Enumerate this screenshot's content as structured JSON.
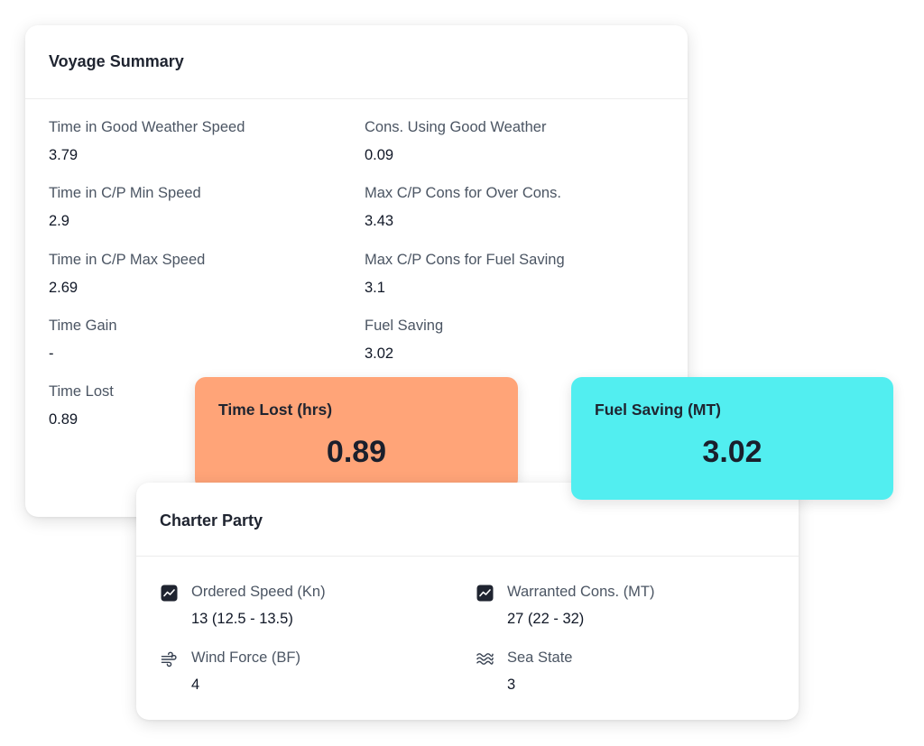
{
  "voyage_summary": {
    "title": "Voyage Summary",
    "fields": [
      {
        "label": "Time in Good Weather Speed",
        "value": "3.79"
      },
      {
        "label": "Cons. Using Good Weather",
        "value": "0.09"
      },
      {
        "label": "Time in C/P Min Speed",
        "value": "2.9"
      },
      {
        "label": "Max C/P Cons for Over Cons.",
        "value": "3.43"
      },
      {
        "label": "Time in C/P Max Speed",
        "value": "2.69"
      },
      {
        "label": "Max C/P Cons for Fuel Saving",
        "value": "3.1"
      },
      {
        "label": "Time Gain",
        "value": "-"
      },
      {
        "label": "Fuel Saving",
        "value": "3.02"
      },
      {
        "label": "Time Lost",
        "value": "0.89"
      }
    ]
  },
  "stats": {
    "time_lost": {
      "label": "Time Lost (hrs)",
      "value": "0.89",
      "color": "#ffa478"
    },
    "fuel_saving": {
      "label": "Fuel Saving (MT)",
      "value": "3.02",
      "color": "#52eef0"
    }
  },
  "charter_party": {
    "title": "Charter Party",
    "fields": [
      {
        "icon": "trend-chart-icon",
        "label": "Ordered Speed (Kn)",
        "value": "13 (12.5 - 13.5)"
      },
      {
        "icon": "trend-chart-icon",
        "label": "Warranted Cons. (MT)",
        "value": "27 (22 - 32)"
      },
      {
        "icon": "wind-icon",
        "label": "Wind Force (BF)",
        "value": "4"
      },
      {
        "icon": "waves-icon",
        "label": "Sea State",
        "value": "3"
      }
    ]
  }
}
